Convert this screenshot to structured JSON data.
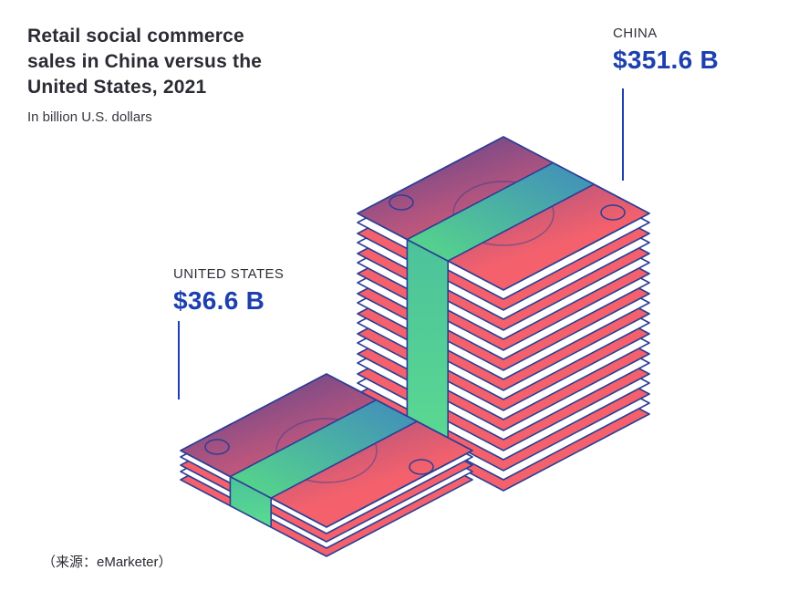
{
  "header": {
    "title_lines": [
      "Retail social commerce",
      "sales in China versus the",
      "United States, 2021"
    ],
    "subtitle": "In billion U.S. dollars"
  },
  "annotations": {
    "china": {
      "label": "CHINA",
      "value": "$351.6 B"
    },
    "us": {
      "label": "UNITED STATES",
      "value": "$36.6 B"
    }
  },
  "source": "（来源：eMarketer）",
  "colors": {
    "accent_blue": "#1d40ae",
    "outline_blue": "#2c3e94",
    "bill_red": "#f4616c",
    "bill_purple": "#59448c",
    "strap_teal": "#4293b8",
    "strap_green": "#55d38c",
    "text_dark": "#2b2b33"
  },
  "chart_data": {
    "type": "bar",
    "title": "Retail social commerce sales in China versus the United States, 2021",
    "unit": "billion U.S. dollars",
    "categories": [
      "CHINA",
      "UNITED STATES"
    ],
    "values": [
      351.6,
      36.6
    ],
    "value_labels": [
      "$351.6 B",
      "$36.6 B"
    ],
    "source": "eMarketer",
    "legend": false,
    "representation": "isometric stacks of red banknotes with green straps, stack heights proportional to value",
    "bills_depicted": [
      11,
      3
    ]
  }
}
